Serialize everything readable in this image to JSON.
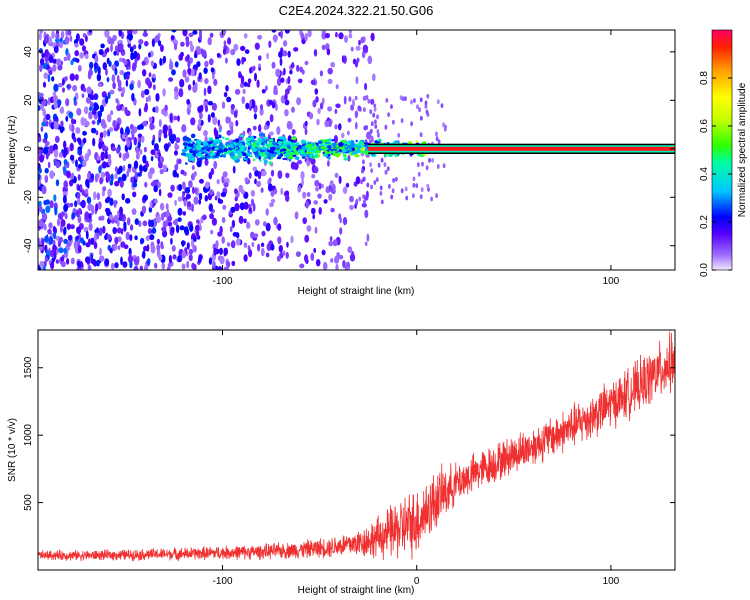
{
  "figure": {
    "title": "C2E4.2024.322.21.50.G06"
  },
  "colors": {
    "snr_line": "#f03030",
    "spectrogram_low": "#6a00ff",
    "spectrogram_high": "#ff0044",
    "background": "#ffffff"
  },
  "chart_data": [
    {
      "type": "heatmap",
      "title": "",
      "xlabel": "Height of straight line (km)",
      "ylabel": "Frequency (Hz)",
      "xlim": [
        -195,
        133
      ],
      "ylim": [
        -50,
        49
      ],
      "xticks": [
        -100,
        0,
        100
      ],
      "xtick_labels": [
        "-100",
        "",
        "100"
      ],
      "yticks": [
        -40,
        -20,
        0,
        20,
        40
      ],
      "ytick_labels": [
        "-40",
        "-20",
        "0",
        "20",
        "40"
      ],
      "grid": false,
      "colorbar": {
        "label": "Normalized spectral amplitude",
        "range": [
          0,
          1
        ],
        "ticks": [
          0.0,
          0.2,
          0.4,
          0.6,
          0.8
        ],
        "tick_labels": [
          "0.0",
          "0.2",
          "0.4",
          "0.6",
          "0.8"
        ],
        "colormap": "rainbow"
      },
      "features": {
        "carrier_frequency_hz": 0,
        "carrier_clear_from_km": 5,
        "carrier_amplitude": 0.95,
        "carrier_band_halfwidth_hz": 1.5,
        "broadband_noise_extent_km": [
          -195,
          -22
        ],
        "noise_amplitude_range": [
          0.05,
          0.3
        ],
        "scintillation_zone_km": [
          -120,
          -5
        ],
        "scintillation_halfwidth_hz": 4,
        "scintillation_amplitude_range": [
          0.2,
          0.6
        ]
      }
    },
    {
      "type": "line",
      "title": "",
      "xlabel": "Height of straight line (km)",
      "ylabel": "SNR (10 * v/v)",
      "xlim": [
        -195,
        133
      ],
      "ylim": [
        0,
        1780
      ],
      "xticks": [
        -100,
        0,
        100
      ],
      "xtick_labels": [
        "-100",
        "0",
        "100"
      ],
      "yticks": [
        500,
        1000,
        1500
      ],
      "ytick_labels": [
        "500",
        "1000",
        "1500"
      ],
      "grid": false,
      "series": [
        {
          "x": [
            -195,
            -180,
            -160,
            -140,
            -120,
            -100,
            -80,
            -60,
            -45,
            -30,
            -20,
            -10,
            0,
            10,
            20,
            30,
            40,
            50,
            60,
            70,
            80,
            90,
            100,
            110,
            120,
            133
          ],
          "values": [
            110,
            108,
            110,
            115,
            120,
            128,
            135,
            150,
            170,
            200,
            240,
            300,
            360,
            520,
            640,
            720,
            790,
            860,
            920,
            990,
            1060,
            1140,
            1230,
            1320,
            1420,
            1560
          ],
          "noise_band": [
            40,
            45,
            45,
            50,
            55,
            60,
            65,
            75,
            90,
            120,
            180,
            260,
            300,
            260,
            180,
            170,
            170,
            170,
            170,
            180,
            190,
            200,
            210,
            220,
            240,
            260
          ]
        }
      ]
    }
  ]
}
